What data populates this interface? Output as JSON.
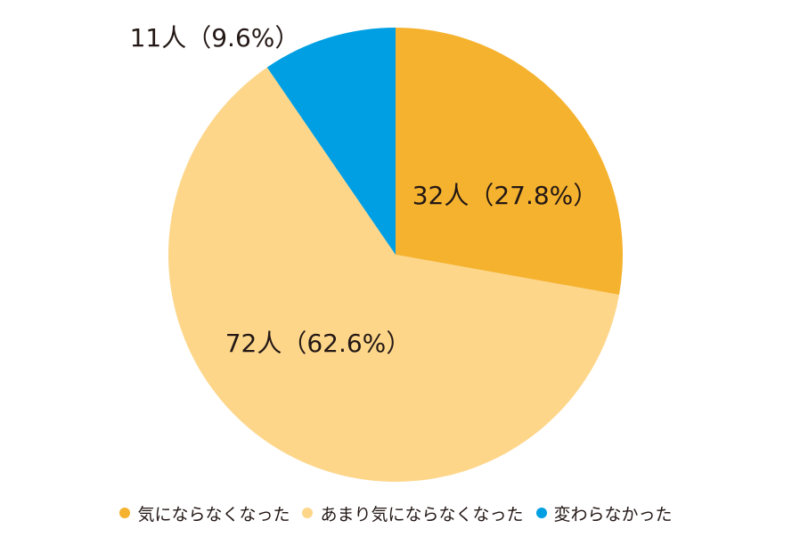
{
  "chart_data": {
    "type": "pie",
    "slices": [
      {
        "label": "気にならなくなった",
        "value": 32,
        "percent": 27.8,
        "data_label": "32人（27.8%）",
        "color": "#F5B22E"
      },
      {
        "label": "あまり気にならなくなった",
        "value": 72,
        "percent": 62.6,
        "data_label": "72人（62.6%）",
        "color": "#FDD68A"
      },
      {
        "label": "変わらなかった",
        "value": 11,
        "percent": 9.6,
        "data_label": "11人（9.6%）",
        "color": "#009FE3"
      }
    ],
    "start_angle": "12 o'clock",
    "direction": "clockwise",
    "legend_position": "bottom",
    "title": ""
  }
}
